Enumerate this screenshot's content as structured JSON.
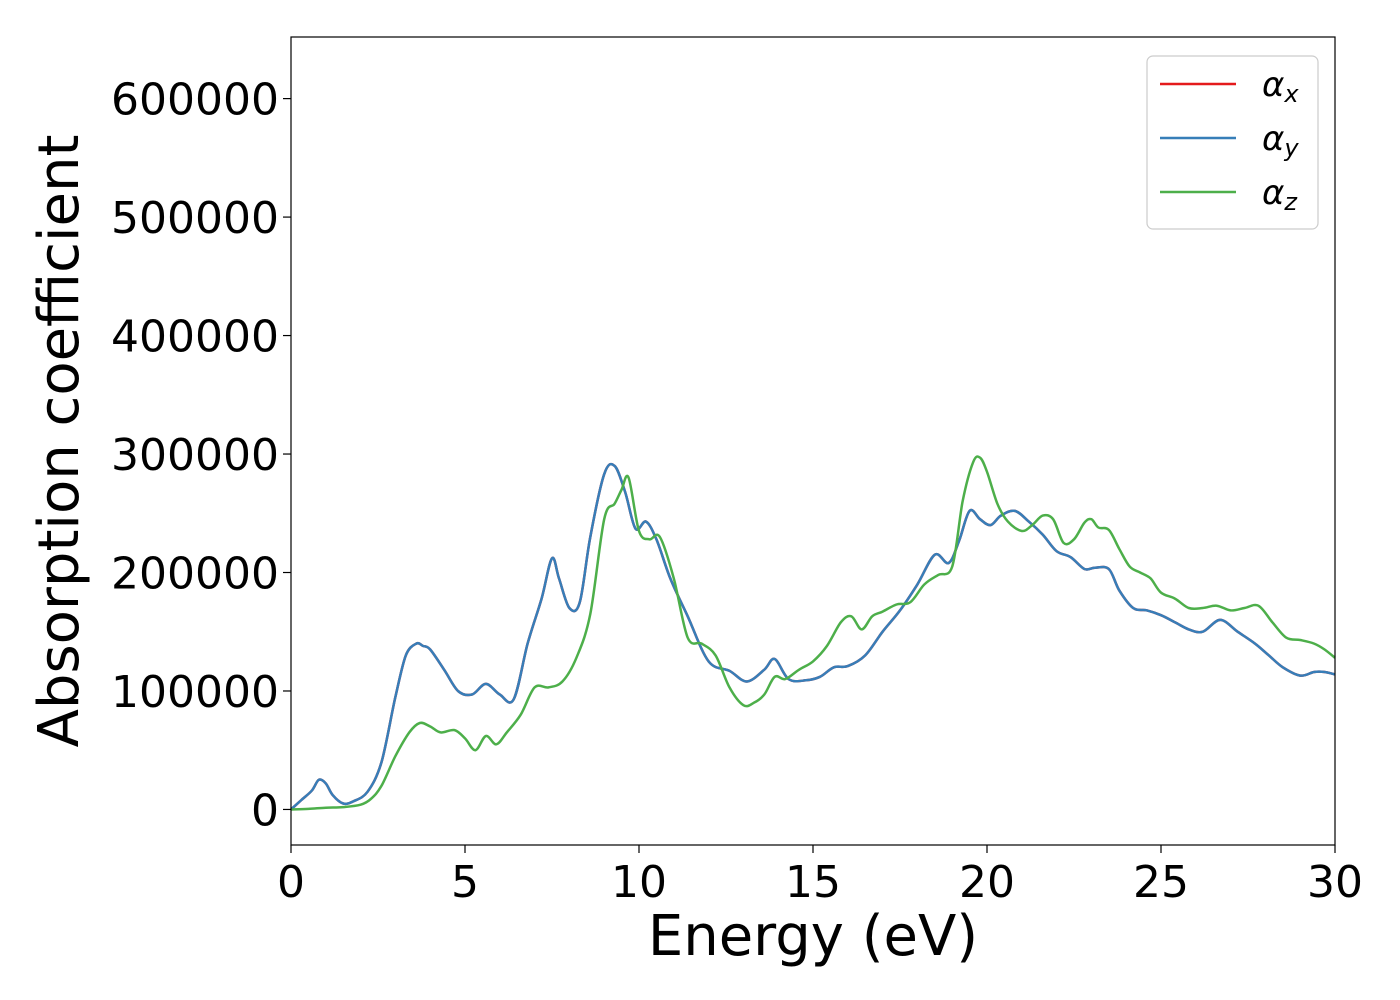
{
  "chart_data": {
    "type": "line",
    "xlabel": "Energy (eV)",
    "ylabel": "Absorption coefficient",
    "xlim": [
      0,
      30
    ],
    "ylim": [
      -30000,
      652000
    ],
    "xticks": [
      0,
      5,
      10,
      15,
      20,
      25,
      30
    ],
    "xtick_labels": [
      "0",
      "5",
      "10",
      "15",
      "20",
      "25",
      "30"
    ],
    "yticks": [
      0,
      100000,
      200000,
      300000,
      400000,
      500000,
      600000
    ],
    "ytick_labels": [
      "0",
      "100000",
      "200000",
      "300000",
      "400000",
      "500000",
      "600000"
    ],
    "grid": false,
    "legend_position": "top-right",
    "series": [
      {
        "name": "α",
        "subscript": "x",
        "color": "#e41a1c",
        "x": [
          0,
          0.3,
          0.6,
          0.8,
          1.0,
          1.2,
          1.5,
          1.8,
          2.2,
          2.6,
          3.0,
          3.3,
          3.6,
          3.8,
          4.0,
          4.4,
          4.8,
          5.2,
          5.6,
          6.0,
          6.4,
          6.8,
          7.2,
          7.5,
          7.7,
          8.0,
          8.3,
          8.6,
          9.0,
          9.3,
          9.6,
          9.9,
          10.2,
          10.5,
          10.9,
          11.4,
          12.0,
          12.6,
          13.1,
          13.6,
          13.9,
          14.3,
          14.8,
          15.2,
          15.6,
          16.0,
          16.5,
          17.0,
          17.5,
          18.0,
          18.5,
          18.9,
          19.2,
          19.5,
          19.8,
          20.1,
          20.4,
          20.8,
          21.2,
          21.6,
          22.0,
          22.4,
          22.8,
          23.1,
          23.5,
          23.8,
          24.2,
          24.6,
          25.0,
          25.4,
          25.8,
          26.2,
          26.7,
          27.2,
          27.7,
          28.1,
          28.5,
          29.0,
          29.4,
          29.7,
          30.0
        ],
        "y": [
          0,
          8000,
          16000,
          25000,
          22000,
          12000,
          5000,
          7000,
          15000,
          40000,
          95000,
          130000,
          140000,
          138000,
          135000,
          118000,
          100000,
          97000,
          106000,
          97000,
          93000,
          140000,
          178000,
          212000,
          195000,
          170000,
          175000,
          230000,
          283000,
          290000,
          268000,
          237000,
          243000,
          228000,
          195000,
          163000,
          125000,
          117000,
          108000,
          118000,
          127000,
          110000,
          109000,
          112000,
          120000,
          121000,
          130000,
          150000,
          168000,
          190000,
          215000,
          208000,
          227000,
          252000,
          245000,
          240000,
          248000,
          252000,
          243000,
          232000,
          218000,
          213000,
          203000,
          204000,
          203000,
          185000,
          170000,
          168000,
          164000,
          158000,
          152000,
          150000,
          160000,
          150000,
          140000,
          130000,
          120000,
          113000,
          116000,
          116000,
          114000
        ]
      },
      {
        "name": "α",
        "subscript": "y",
        "color": "#377eb8",
        "x": [
          0,
          0.3,
          0.6,
          0.8,
          1.0,
          1.2,
          1.5,
          1.8,
          2.2,
          2.6,
          3.0,
          3.3,
          3.6,
          3.8,
          4.0,
          4.4,
          4.8,
          5.2,
          5.6,
          6.0,
          6.4,
          6.8,
          7.2,
          7.5,
          7.7,
          8.0,
          8.3,
          8.6,
          9.0,
          9.3,
          9.6,
          9.9,
          10.2,
          10.5,
          10.9,
          11.4,
          12.0,
          12.6,
          13.1,
          13.6,
          13.9,
          14.3,
          14.8,
          15.2,
          15.6,
          16.0,
          16.5,
          17.0,
          17.5,
          18.0,
          18.5,
          18.9,
          19.2,
          19.5,
          19.8,
          20.1,
          20.4,
          20.8,
          21.2,
          21.6,
          22.0,
          22.4,
          22.8,
          23.1,
          23.5,
          23.8,
          24.2,
          24.6,
          25.0,
          25.4,
          25.8,
          26.2,
          26.7,
          27.2,
          27.7,
          28.1,
          28.5,
          29.0,
          29.4,
          29.7,
          30.0
        ],
        "y": [
          0,
          8000,
          16000,
          25000,
          22000,
          12000,
          5000,
          7000,
          15000,
          40000,
          95000,
          130000,
          140000,
          138000,
          135000,
          118000,
          100000,
          97000,
          106000,
          97000,
          93000,
          140000,
          178000,
          212000,
          195000,
          170000,
          175000,
          230000,
          283000,
          290000,
          268000,
          237000,
          243000,
          228000,
          195000,
          163000,
          125000,
          117000,
          108000,
          118000,
          127000,
          110000,
          109000,
          112000,
          120000,
          121000,
          130000,
          150000,
          168000,
          190000,
          215000,
          208000,
          227000,
          252000,
          245000,
          240000,
          248000,
          252000,
          243000,
          232000,
          218000,
          213000,
          203000,
          204000,
          203000,
          185000,
          170000,
          168000,
          164000,
          158000,
          152000,
          150000,
          160000,
          150000,
          140000,
          130000,
          120000,
          113000,
          116000,
          116000,
          114000
        ]
      },
      {
        "name": "α",
        "subscript": "z",
        "color": "#4daf4a",
        "x": [
          0,
          0.5,
          1.0,
          1.5,
          2.0,
          2.3,
          2.6,
          3.0,
          3.4,
          3.7,
          4.0,
          4.3,
          4.7,
          5.0,
          5.3,
          5.6,
          5.9,
          6.2,
          6.6,
          7.0,
          7.4,
          7.8,
          8.2,
          8.6,
          9.0,
          9.3,
          9.5,
          9.7,
          10.0,
          10.3,
          10.6,
          11.0,
          11.4,
          11.8,
          12.2,
          12.6,
          13.0,
          13.3,
          13.6,
          13.9,
          14.2,
          14.6,
          15.0,
          15.4,
          15.8,
          16.1,
          16.4,
          16.7,
          17.0,
          17.4,
          17.8,
          18.2,
          18.6,
          19.0,
          19.3,
          19.6,
          19.8,
          20.0,
          20.3,
          20.6,
          21.0,
          21.3,
          21.6,
          21.9,
          22.2,
          22.5,
          22.8,
          23.0,
          23.2,
          23.5,
          23.8,
          24.1,
          24.4,
          24.7,
          25.0,
          25.4,
          25.8,
          26.2,
          26.6,
          27.0,
          27.4,
          27.8,
          28.2,
          28.6,
          29.0,
          29.4,
          29.7,
          30.0
        ],
        "y": [
          0,
          500,
          1500,
          2000,
          4000,
          9000,
          20000,
          45000,
          65000,
          73000,
          70000,
          65000,
          67000,
          60000,
          50000,
          62000,
          55000,
          65000,
          80000,
          103000,
          103000,
          108000,
          128000,
          165000,
          245000,
          258000,
          270000,
          280000,
          235000,
          228000,
          230000,
          195000,
          145000,
          140000,
          130000,
          103000,
          88000,
          90000,
          97000,
          112000,
          110000,
          118000,
          125000,
          138000,
          158000,
          163000,
          152000,
          163000,
          167000,
          173000,
          175000,
          190000,
          198000,
          205000,
          260000,
          293000,
          297000,
          285000,
          258000,
          243000,
          235000,
          240000,
          248000,
          245000,
          225000,
          228000,
          242000,
          245000,
          238000,
          236000,
          220000,
          205000,
          200000,
          195000,
          183000,
          178000,
          170000,
          170000,
          172000,
          168000,
          170000,
          172000,
          158000,
          145000,
          143000,
          140000,
          135000,
          128000
        ]
      }
    ]
  }
}
